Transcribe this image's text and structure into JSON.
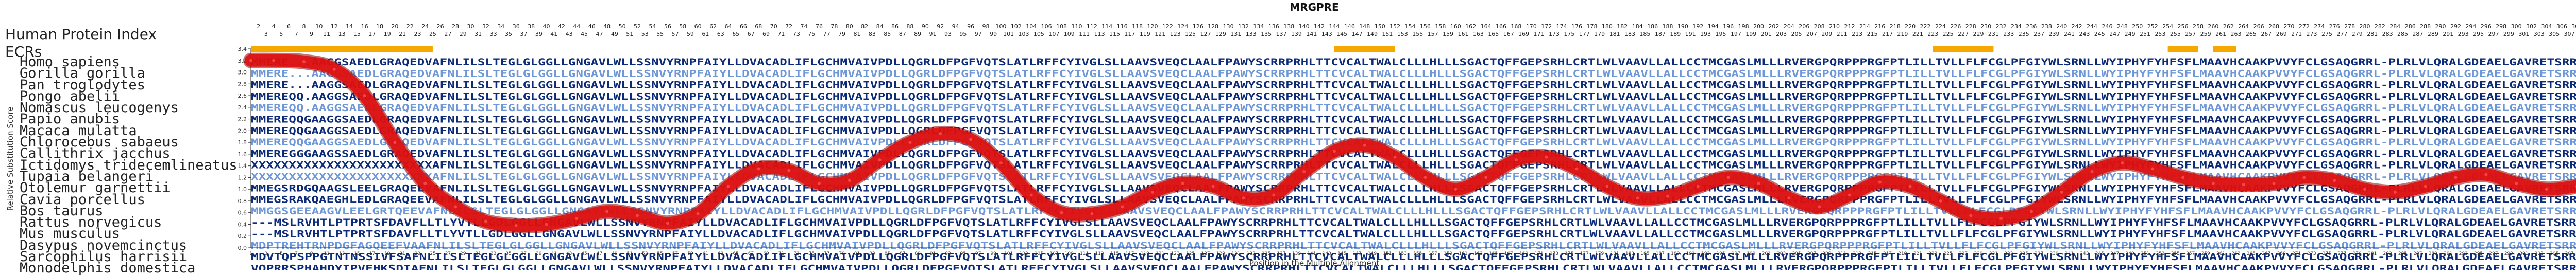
{
  "header": {
    "title": "MRGPRE",
    "left_title": "Human Protein Index",
    "ecr_label": "ECRs"
  },
  "species": [
    "Homo sapiens",
    "Gorilla gorilla",
    "Pan troglodytes",
    "Pongo abelii",
    "Nomascus leucogenys",
    "Papio anubis",
    "Macaca mulatta",
    "Chlorocebus sabaeus",
    "Callithrix jacchus",
    "Ictidomys tridecemlineatus",
    "Tupaia belangeri",
    "Otolemur garnettii",
    "Cavia porcellus",
    "Bos taurus",
    "Rattus norvegicus",
    "Mus musculus",
    "Dasypus novemcinctus",
    "Sarcophilus harrisii",
    "Monodelphis domestica"
  ],
  "alignment_rows": [
    "MMERE...AAGGSAEDLGRAQEDVAFNLILSLTEGLGLGGLLGNGAVLWLLSSNVYRNPFAIYLLDVACADLIFLGCHMVAIVPDLLQGRLDFPGFVQTSLATLRFFCYIVGLSLLAAVSVEQCLAALFPAWYSCRRPRHLTTCVCALTWALCLLLHLLLSGACTQFFGEPSRHLCRTLWLVAAVLLALLCCTMCGASLMLLLRVERGPQRPPPRGFPTLILLTVLLFLFCGLPFGIYWLSRNLLWYIPHYFYHFSFLMAAVHCAAKPVVYFCLGSAQGRRL-PLRLVLQRALGDEAELGAVRETSRRGLVDIA",
    "MMERE...AAGGSAEDLGRAQEDVAFNLILSLTEGLGLGGLLGNGAVLWLLSSNVYRNPFAIYLLDVACADLIFLGCHMVAIVPDLLQGRLDFPGFVQTSLATLRFFCYIVGLSLLAAVSVEQCLAALFPAWYSCRRPRHLTTCVCALTWALCLLLHLLLSGACTQFFGEPSRHLCRTLWLVAAVLLALLCCTMCGASLMLLLRVERGPQRPPPRGFPTLILLTVLLFLFCGLPFGIYWLSRNLLWYIPHYFYHFSFLMAAVHCAAKPVVYFCLGSAQGRRL-PLRLVLQRALGDEAELGAVRETSRRGLVDIA",
    "MMERE...AAGGSAEDLGRAQEDVAFNLILSLTEGLGLGGLLGNGAVLWLLSSNVYRNPFAIYLLDVACADLIFLGCHMVAIVPDLLQGRLDFPGFVQTSLATLRFFCYIVGLSLLAAVSVEQCLAALFPAWYSCRRPRHLTTCVCALTWALCLLLHLLLSGACTQFFGEPSRHLCRTLWLVAAVLLALLCCTMCGASLMLLLRVERGPQRPPPRGFPTLILLTVLLFLFCGLPFGIYWLSRNLLWYIPHYFYHFSFLMAAVHCAAKPVVYFCLGSAQGRRL-PLRLVLQRALGDEAELGAVRETSRRGLVDIA",
    "MMEREQQ.AAGGSAEDLGRAQEDVAFNLILSLTEGLGLGGLLGNGAVLWLLSSNVYRNPFAIYLLDVACADLIFLGCHMVAIVPDLLQGRLDFPGFVQTSLATLRFFCYIVGLSLLAAVSVEQCLAALFPAWYSCRRPRHLTTCVCALTWALCLLLHLLLSGACTQFFGEPSRHLCRTLWLVAAVLLALLCCTMCGASLMLLLRVERGPQRPPPRGFPTLILLTVLLFLFCGLPFGIYWLSRNLLWYIPHYFYHFSFLMAAVHCAAKPVVYFCLGSAQGRRL-PLRLVLQRALGDEAELGAVRETSRRGLVDIA",
    "MMEREQQ.AAGGSAEDLGRAQEDVAFNLILSLTEGLGLGGLLGNGAVLWLLSSNVYRNPFAIYLLDVACADLIFLGCHMVAIVPDLLQGRLDFPGFVQTSLATLRFFCYIVGLSLLAAVSVEQCLAALFPAWYSCRRPRHLTTCVCALTWALCLLLHLLLSGACTQFFGEPSRHLCRTLWLVAAVLLALLCCTMCGASLMLLLRVERGPQRPPPRGFPTLILLTVLLFLFCGLPFGIYWLSRNLLWYIPHYFYHFSFLMAAVHCAAKPVVYFCLGSAQGRRL-PLRLVLQRALGDEAELGAVRETSRRGLVDIA",
    "MMEREQQGAAGGSAEDLGRAQEDVAFNLILSLTEGLGLGGLLGNGAVLWLLSSNVYRNPFAIYLLDVACADLIFLGCHMVAIVPDLLQGRLDFPGFVQTSLATLRFFCYIVGLSLLAAVSVEQCLAALFPAWYSCRRPRHLTTCVCALTWALCLLLHLLLSGACTQFFGEPSRHLCRTLWLVAAVLLALLCCTMCGASLMLLLRVERGPQRPPPRGFPTLILLTVLLFLFCGLPFGIYWLSRNLLWYIPHYFYHFSFLMAAVHCAAKPVVYFCLGSAQGRRL-PLRLVLQRALGDEAELGAVRETSRRGLVDIA",
    "MMEREQQGAAGGSAEDLGRAQEDVAFNLILSLTEGLGLGGLLGNGAVLWLLSSNVYRNPFAIYLLDVACADLIFLGCHMVAIVPDLLQGRLDFPGFVQTSLATLRFFCYIVGLSLLAAVSVEQCLAALFPAWYSCRRPRHLTTCVCALTWALCLLLHLLLSGACTQFFGEPSRHLCRTLWLVAAVLLALLCCTMCGASLMLLLRVERGPQRPPPRGFPTLILLTVLLFLFCGLPFGIYWLSRNLLWYIPHYFYHFSFLMAAVHCAAKPVVYFCLGSAQGRRL-PLRLVLQRALGDEAELGAVRETSRRGLVDIA",
    "MMEREQQGAAGGSAEDLGRAQEDVAFNLILSLTEGLGLGGLLGNGAVLWLLSSNVYRNPFAIYLLDVACADLIFLGCHMVAIVPDLLQGRLDFPGFVQTSLATLRFFCYIVGLSLLAAVSVEQCLAALFPAWYSCRRPRHLTTCVCALTWALCLLLHLLLSGACTQFFGEPSRHLCRTLWLVAAVLLALLCCTMCGASLMLLLRVERGPQRPPPRGFPTLILLTVLLFLFCGLPFGIYWLSRNLLWYIPHYFYHFSFLMAAVHCAAKPVVYFCLGSAQGRRL-PLRLVLQRALGDEAELGAVRETSRRGLVDIA",
    "MMEREGGGAAGSSAEDLGRAQEDVAFNLILSLTEGLGLGGLLGNGAVLWLLSSNVYRNPFAIYLLDVACADLIFLGCHMVAIVPDLLQGRLDFPGFVQTSLATLRFFCYIVGLSLLAAVSVEQCLAALFPAWYSCRRPRHLTTCVCALTWALCLLLHLLLSGACTQFFGEPSRHLCRTLWLVAAVLLALLCCTMCGASLMLLLRVERGPQRPPPRGFPTLILLTVLLFLFCGLPFGIYWLSRNLLWYIPHYFYHFSFLMAAVHCAAKPVVYFCLGSAQGRRL-PLRLVLQRALGDEAELGAVRETSRRGLVDIA",
    "XXXXXXXXXXXXXXXXXXXXXXXXAFNLILSLTEGLGLGGLLGNGAVLWLLSSNVYRNPFAIYLLDVACADLIFLGCHMVAIVPDLLQGRLDFPGFVQTSLATLRFFCYIVGLSLLAAVSVEQCLAALFPAWYSCRRPRHLTTCVCALTWALCLLLHLLLSGACTQFFGEPSRHLCRTLWLVAAVLLALLCCTMCGASLMLLLRVERGPQRPPPRGFPTLILLTVLLFLFCGLPFGIYWLSRNLLWYIPHYFYHFSFLMAAVHCAAKPVVYFCLGSAQGRRL-PLRLVLQRALGDEAELGAVRETSRRGLVDIA",
    "XXXXXXXXXXXXXXXXXXXXXXXXAFNLILSLTEGLGLGGLLGNGAVLWLLSSNVYRNPFAIYLLDVACADLIFLGCHMVAIVPDLLQGRLDFPGFVQTSLATLRFFCYIVGLSLLAAVSVEQCLAALFPAWYSCRRPRHLTTCVCALTWALCLLLHLLLSGACTQFFGEPSRHLCRTLWLVAAVLLALLCCTMCGASLMLLLRVERGPQRPPPRGFPTLILLTVLLFLFCGLPFGIYWLSRNLLWYIPHYFYHFSFLMAAVHCAAKPVVYFCLGSAQGRRL-PLRLVLQRALGDEAELGAVRETSRRGLVDIA",
    "MMEGSRDGQAAGSLEELGRAQEEVAFNLILSLTEGLGLGGLLGNGAVLWLLSSNVYRNPFAIYLLDVACADLIFLGCHMVAIVPDLLQGRLDFPGFVQTSLATLRFFCYIVGLSLLAAVSVEQCLAALFPAWYSCRRPRHLTTCVCALTWALCLLLHLLLSGACTQFFGEPSRHLCRTLWLVAAVLLALLCCTMCGASLMLLLRVERGPQRPPPRGFPTLILLTVLLFLFCGLPFGIYWLSRNLLWYIPHYFYHFSFLMAAVHCAAKPVVYFCLGSAQGRRL-PLRLVLQRALGDEAELGAVRETSRRGLVDIA",
    "MMEGSRAKQAEGHLEDLGRAQEEVAFNLILSLTEGLGLGGLLGNGAVLWLLSSNVYRNPFAIYLLDVACADLIFLGCHMVAIVPDLLQGRLDFPGFVQTSLATLRFFCYIVGLSLLAAVSVEQCLAALFPAWYSCRRPRHLTTCVCALTWALCLLLHLLLSGACTQFFGEPSRHLCRTLWLVAAVLLALLCCTMCGASLMLLLRVERGPQRPPPRGFPTLILLTVLLFLFCGLPFGIYWLSRNLLWYIPHYFYHFSFLMAAVHCAAKPVVYFCLGSAQGRRL-PLRLVLQRALGDEAELGAVRETSRRGLVDIA",
    "MMGGSGEEAAGVLEELGRTQEEVAFNLILSLTEGLGLGGLLGNGAVLWLLSSNVYRNPFAIYLLDVACADLIFLGCHMVAIVPDLLQGRLDFPGFVQTSLATLRFFCYIVGLSLLAAVSVEQCLAALFPAWYSCRRPRHLTTCVCALTWALCLLLHLLLSGACTQFFGEPSRHLCRTLWLVAAVLLALLCCTMCGASLMLLLRVERGPQRPPPRGFPTLILLTVLLFLFCGLPFGIYWLSRNLLWYIPHYFYHFSFLMAAVHCAAKPVVYFCLGSAQGRRL-PLRLVLQRALGDEAELGAVRETSRRGLVDIA",
    "---MSLRVHTLPTPRTSFDAVFLLTLYVTLLGDLGGLLGNGAVLWLLSSNVYRNPFAIYLLDVACADLIFLGCHMVAIVPDLLQGRLDFPGFVQTSLATLRFFCYIVGLSLLAAVSVEQCLAALFPAWYSCRRPRHLTTCVCALTWALCLLLHLLLSGACTQFFGEPSRHLCRTLWLVAAVLLALLCCTMCGASLMLLLRVERGPQRPPPRGFPTLILLTVLLFLFCGLPFGIYWLSRNLLWYIPHYFYHFSFLMAAVHCAAKPVVYFCLGSAQGRRL-PLRLVLQRALGDEAELGAVRETSRRGLVDIA",
    "---MSLRVHTLPTPRTSFDAVFLLTLYVTLLGDLGGLLGNGAVLWLLSSNVYRNPFAIYLLDVACADLIFLGCHMVAIVPDLLQGRLDFPGFVQTSLATLRFFCYIVGLSLLAAVSVEQCLAALFPAWYSCRRPRHLTTCVCALTWALCLLLHLLLSGACTQFFGEPSRHLCRTLWLVAAVLLALLCCTMCGASLMLLLRVERGPQRPPPRGFPTLILLTVLLFLFCGLPFGIYWLSRNLLWYIPHYFYHFSFLMAAVHCAAKPVVYFCLGSAQGRRL-PLRLVLQRALGDEAELGAVRETSRRGLVDIA",
    "MDPTREHTRNPDGFAGQEEFVAAFNLILSLTEGLGLGGLLGNGAVLWLLSSNVYRNPFAIYLLDVACADLIFLGCHMVAIVPDLLQGRLDFPGFVQTSLATLRFFCYIVGLSLLAAVSVEQCLAALFPAWYSCRRPRHLTTCVCALTWALCLLLHLLLSGACTQFFGEPSRHLCRTLWLVAAVLLALLCCTMCGASLMLLLRVERGPQRPPPRGFPTLILLTVLLFLFCGLPFGIYWLSRNLLWYIPHYFYHFSFLMAAVHCAAKPVVYFCLGSAQGRRL-PLRLVLQRALGDEAELGAVRETSRRGLVDIA",
    "MDVTQPSPPGTNTNSSIVFSAFNLILSLTEGLGLGGLLGNGAVLWLLSSNVYRNPFAIYLLDVACADLIFLGCHMVAIVPDLLQGRLDFPGFVQTSLATLRFFCYIVGLSLLAAVSVEQCLAALFPAWYSCRRPRHLTTCVCALTWALCLLLHLLLSGACTQFFGEPSRHLCRTLWLVAAVLLALLCCTMCGASLMLLLRVERGPQRPPPRGFPTLILLTVLLFLFCGLPFGIYWLSRNLLWYIPHYFYHFSFLMAAVHCAAKPVVYFCLGSAQGRRL-PLRLVLQRALGDEAELGAVRETSRRGLVDIA",
    "VQPRRSPHAHDYIPVFHKSDIAFNLILSLTEGLGLGGLLGNGAVLWLLSSNVYRNPFAIYLLDVACADLIFLGCHMVAIVPDLLQGRLDFPGFVQTSLATLRFFCYIVGLSLLAAVSVEQCLAALFPAWYSCRRPRHLTTCVCALTWALCLLLHLLLSGACTQFFGEPSRHLCRTLWLVAAVLLALLCCTMCGASLMLLLRVERGPQRPPPRGFPTLILLTVLLFLFCGLPFGIYWLSRNLLWYIPHYFYHFSFLMAAVHCAAKPVVYFCLGSAQGRRL-PLRLVLQRALGDEAELGAVRETSRRGLVDIA"
  ],
  "colors": {
    "curve": "#e01010",
    "curve_outline": "#8a0000",
    "ecr_bar": "#f5a800",
    "residue_dark": "#0b2a78",
    "residue_light": "#6e97d8",
    "grid": "#dddddd"
  },
  "chart_data": {
    "type": "line",
    "title": "MRGPRE",
    "xlabel": "Position in the Multiple Alignment",
    "ylabel": "Relative Substitution Score",
    "ylim": [
      0.0,
      3.4
    ],
    "xlim": [
      1,
      314
    ],
    "yticks": [
      0.0,
      0.2,
      0.4,
      0.6,
      0.8,
      1.0,
      1.2,
      1.4,
      1.6,
      1.8,
      2.0,
      2.2,
      2.4,
      2.6,
      2.8,
      3.0,
      3.2,
      3.4
    ],
    "top_axis_label": "Human Protein Index",
    "human_index_ticks": [
      2,
      4,
      6,
      8,
      10,
      12,
      14,
      16,
      18,
      20,
      22,
      24,
      26,
      28,
      30,
      32,
      34,
      36,
      38,
      40,
      42,
      44,
      46,
      48,
      50,
      52,
      54,
      56,
      58,
      60,
      62,
      64,
      66,
      68,
      70,
      72,
      74,
      76,
      78,
      80,
      82,
      84,
      86,
      88,
      90,
      92,
      94,
      96,
      98,
      100,
      102,
      104,
      106,
      108,
      110,
      112,
      114,
      116,
      118,
      120,
      122,
      124,
      126,
      128,
      130,
      132,
      134,
      136,
      138,
      140,
      142,
      144,
      146,
      148,
      150,
      152,
      154,
      156,
      158,
      160,
      162,
      164,
      166,
      168,
      170,
      172,
      174,
      176,
      178,
      180,
      182,
      184,
      186,
      188,
      190,
      192,
      194,
      196,
      198,
      200,
      202,
      204,
      206,
      208,
      210,
      212,
      214,
      216,
      218,
      220,
      222,
      224,
      226,
      228,
      230,
      232,
      234,
      236,
      238,
      240,
      242,
      244,
      246,
      248,
      250,
      252,
      254,
      256,
      258,
      260,
      262,
      264,
      266,
      268,
      270,
      272,
      274,
      276,
      278,
      280,
      282,
      284,
      286,
      288,
      290,
      292,
      294,
      296,
      298,
      300,
      302,
      304,
      306,
      308,
      310,
      312
    ],
    "series": [
      {
        "x": [
          1,
          4,
          8,
          12,
          16,
          20,
          24,
          28,
          32,
          36,
          40,
          44,
          48,
          52,
          56,
          60,
          64,
          68,
          72,
          76,
          80,
          84,
          88,
          92,
          96,
          100,
          104,
          108,
          112,
          116,
          120,
          124,
          128,
          132,
          136,
          140,
          144,
          148,
          152,
          156,
          160,
          164,
          168,
          172,
          176,
          180,
          184,
          188,
          192,
          196,
          200,
          204,
          208,
          212,
          216,
          220,
          224,
          228,
          232,
          236,
          240,
          244,
          248,
          252,
          256,
          260,
          264,
          268,
          272,
          276,
          280,
          284,
          288,
          292,
          296,
          300,
          304,
          308,
          312,
          314
        ],
        "values": [
          3.2,
          3.2,
          3.18,
          3.05,
          2.6,
          1.8,
          1.1,
          0.7,
          0.45,
          0.38,
          0.4,
          0.5,
          0.62,
          0.55,
          0.42,
          0.58,
          1.05,
          1.35,
          1.32,
          1.1,
          1.15,
          1.5,
          1.8,
          1.95,
          1.85,
          1.45,
          0.9,
          0.6,
          0.58,
          0.7,
          0.95,
          1.1,
          1.05,
          0.85,
          0.9,
          1.3,
          1.65,
          1.75,
          1.55,
          1.2,
          1.0,
          1.2,
          1.5,
          1.55,
          1.35,
          1.05,
          0.85,
          0.88,
          1.05,
          1.2,
          1.1,
          0.85,
          0.7,
          0.9,
          1.12,
          1.05,
          0.8,
          0.55,
          0.5,
          0.62,
          0.95,
          1.3,
          1.45,
          1.35,
          1.2,
          1.1,
          1.08,
          1.1,
          1.2,
          1.15,
          1.0,
          0.95,
          1.05,
          1.2,
          1.25,
          1.1,
          1.0,
          1.05,
          1.1,
          1.1
        ]
      }
    ],
    "ecrs": [
      [
        1,
        25
      ],
      [
        144,
        152
      ],
      [
        223,
        231
      ],
      [
        254,
        258
      ],
      [
        260,
        263
      ]
    ]
  },
  "x_label_text": "Position in the Multiple Alignment",
  "y_label_text": "Relative Substitution Score"
}
